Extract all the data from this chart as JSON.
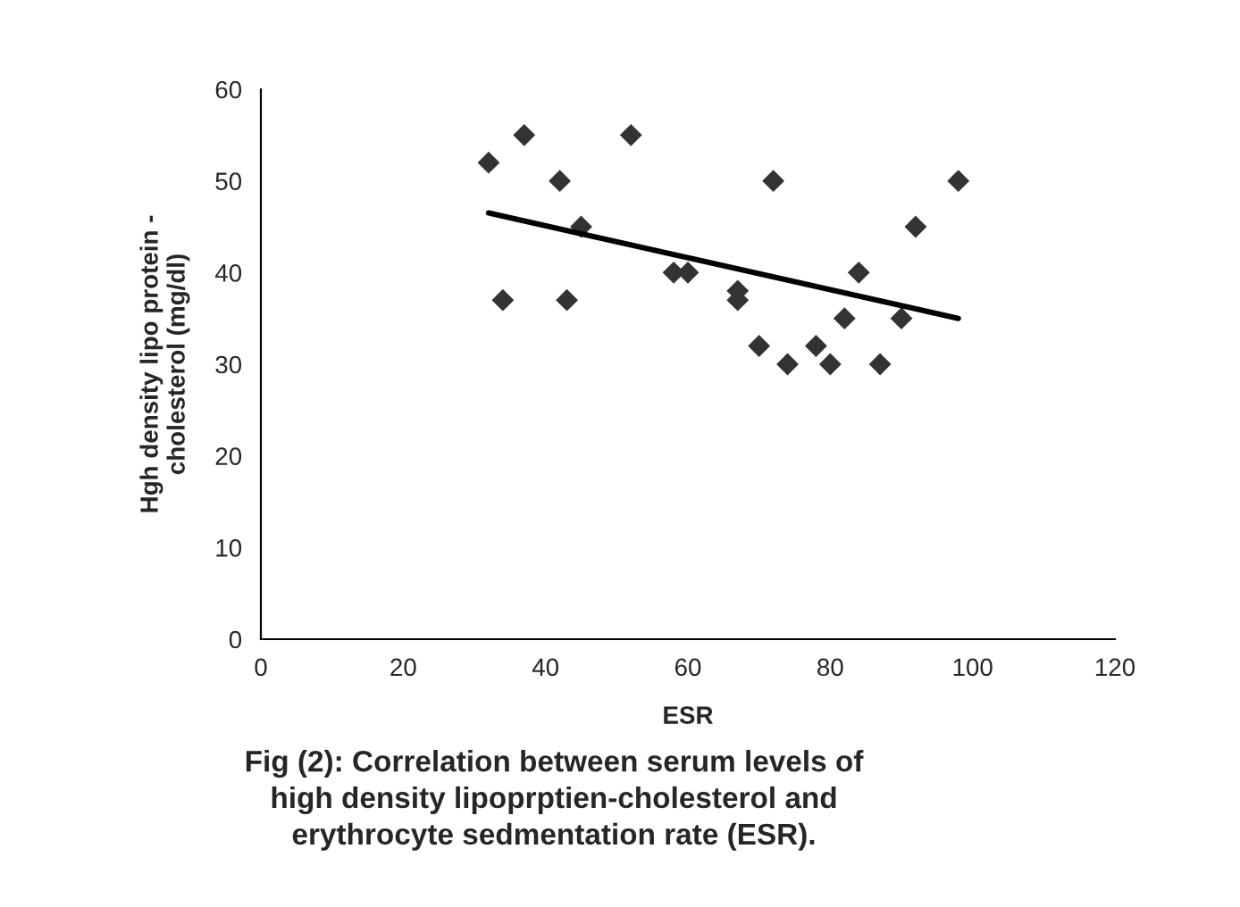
{
  "chart_data": {
    "type": "scatter",
    "xlabel": "ESR",
    "ylabel": "Hgh density lipo protein -\ncholesterol (mg/dl)",
    "xlim": [
      0,
      120
    ],
    "xticks": [
      0,
      20,
      40,
      60,
      80,
      100,
      120
    ],
    "ylim": [
      0,
      60
    ],
    "yticks": [
      0,
      10,
      20,
      30,
      40,
      50,
      60
    ],
    "grid": false,
    "legend": false,
    "series": [
      {
        "color": "#333333",
        "marker": "diamond",
        "x": [
          32,
          34,
          37,
          42,
          43,
          45,
          52,
          58,
          60,
          67,
          67,
          70,
          72,
          74,
          78,
          80,
          82,
          84,
          87,
          90,
          92,
          98
        ],
        "values": [
          52,
          37,
          55,
          50,
          37,
          45,
          55,
          40,
          40,
          38,
          37,
          32,
          50,
          30,
          32,
          30,
          35,
          40,
          30,
          35,
          45,
          50
        ]
      },
      {
        "type": "line",
        "color": "#000000",
        "marker": "none",
        "line_style": "solid",
        "x": [
          32,
          98
        ],
        "values": [
          46.5,
          35
        ]
      }
    ],
    "annotations": [
      "Fig (2): Correlation between serum levels of\nhigh density lipoprptien-cholesterol and\nerythrocyte sedmentation rate (ESR)."
    ]
  }
}
